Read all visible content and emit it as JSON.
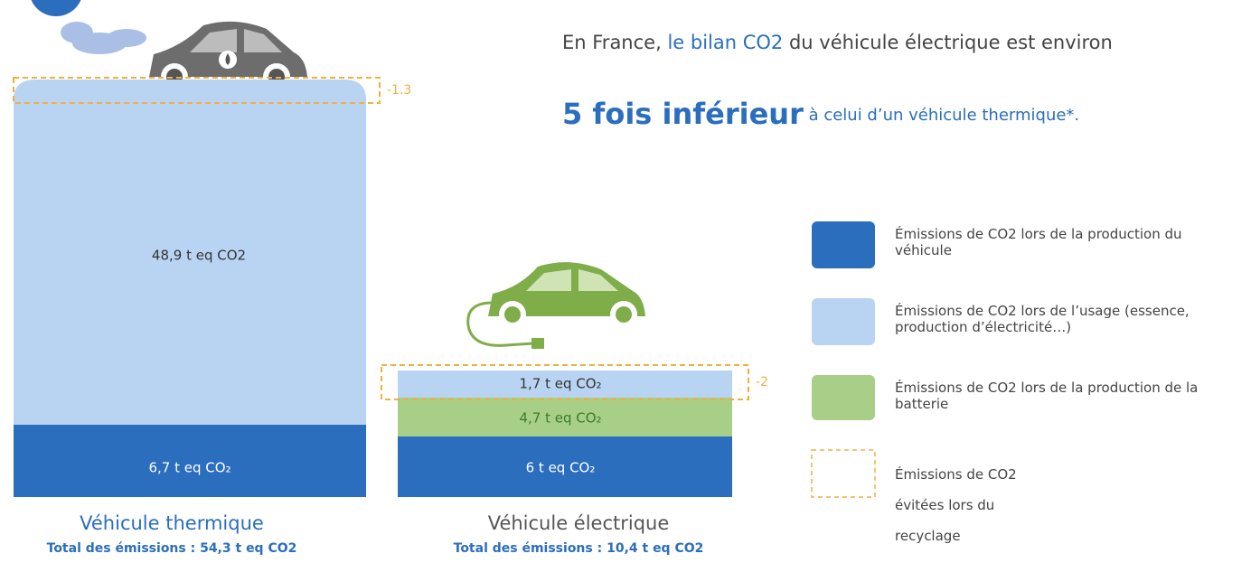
{
  "headline": {
    "intro": "En France, ",
    "highlight": "le bilan CO2",
    "rest": " du véhicule électrique est environ",
    "emphasis": "5 fois inférieur",
    "conclusion": " à celui d’un véhicule thermique*."
  },
  "thermal": {
    "recycling": "-1.3",
    "usage": "48,9 t eq CO2",
    "production": "6,7 t eq CO₂",
    "name": "Véhicule thermique",
    "total": "Total des émissions : 54,3 t eq CO2"
  },
  "electric": {
    "recycling": "-2",
    "usage": "1,7 t eq CO₂",
    "battery": "4,7 t eq CO₂",
    "production": "6 t eq CO₂",
    "name": "Véhicule électrique",
    "total": "Total des émissions : 10,4 t eq CO2"
  },
  "legend": {
    "items": [
      {
        "label": "Émissions de CO2 lors de la production du véhicule"
      },
      {
        "label": "Émissions de CO2 lors de l’usage (essence, production d’électricité…)"
      },
      {
        "label": "Émissions de CO2 lors de la production de la batterie"
      },
      {
        "label": "Émissions de CO2 évitées lors du recyclage"
      }
    ]
  }
}
